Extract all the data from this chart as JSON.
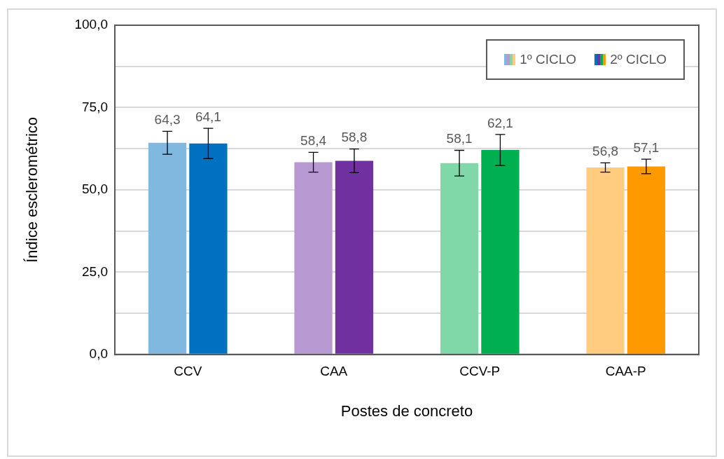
{
  "chart_data": {
    "type": "bar",
    "xlabel": "Postes de concreto",
    "ylabel": "Índice esclerométrico",
    "categories": [
      "CCV",
      "CAA",
      "CCV-P",
      "CAA-P"
    ],
    "series": [
      {
        "name": "1º CICLO",
        "colors": [
          "#80b8e0",
          "#b898d0",
          "#80d8a8",
          "#ffcc80"
        ],
        "values": [
          64.3,
          58.4,
          58.1,
          56.8
        ],
        "errors": [
          3.5,
          3.0,
          3.9,
          1.4
        ],
        "value_labels": [
          "64,3",
          "58,4",
          "58,1",
          "56,8"
        ]
      },
      {
        "name": "2º CICLO",
        "colors": [
          "#0070c0",
          "#7030a0",
          "#00b050",
          "#ff9900"
        ],
        "values": [
          64.1,
          58.8,
          62.1,
          57.1
        ],
        "errors": [
          4.6,
          3.6,
          4.7,
          2.2
        ],
        "value_labels": [
          "64,1",
          "58,8",
          "62,1",
          "57,1"
        ]
      }
    ],
    "ylim": [
      0,
      100
    ],
    "yticks": [
      {
        "value": 0,
        "label": "0,0"
      },
      {
        "value": 12.5,
        "label": null
      },
      {
        "value": 25,
        "label": "25,0"
      },
      {
        "value": 37.5,
        "label": null
      },
      {
        "value": 50,
        "label": "50,0"
      },
      {
        "value": 62.5,
        "label": null
      },
      {
        "value": 75,
        "label": "75,0"
      },
      {
        "value": 87.5,
        "label": null
      },
      {
        "value": 100,
        "label": "100,0"
      }
    ],
    "grid": "y",
    "legend": "top right"
  }
}
